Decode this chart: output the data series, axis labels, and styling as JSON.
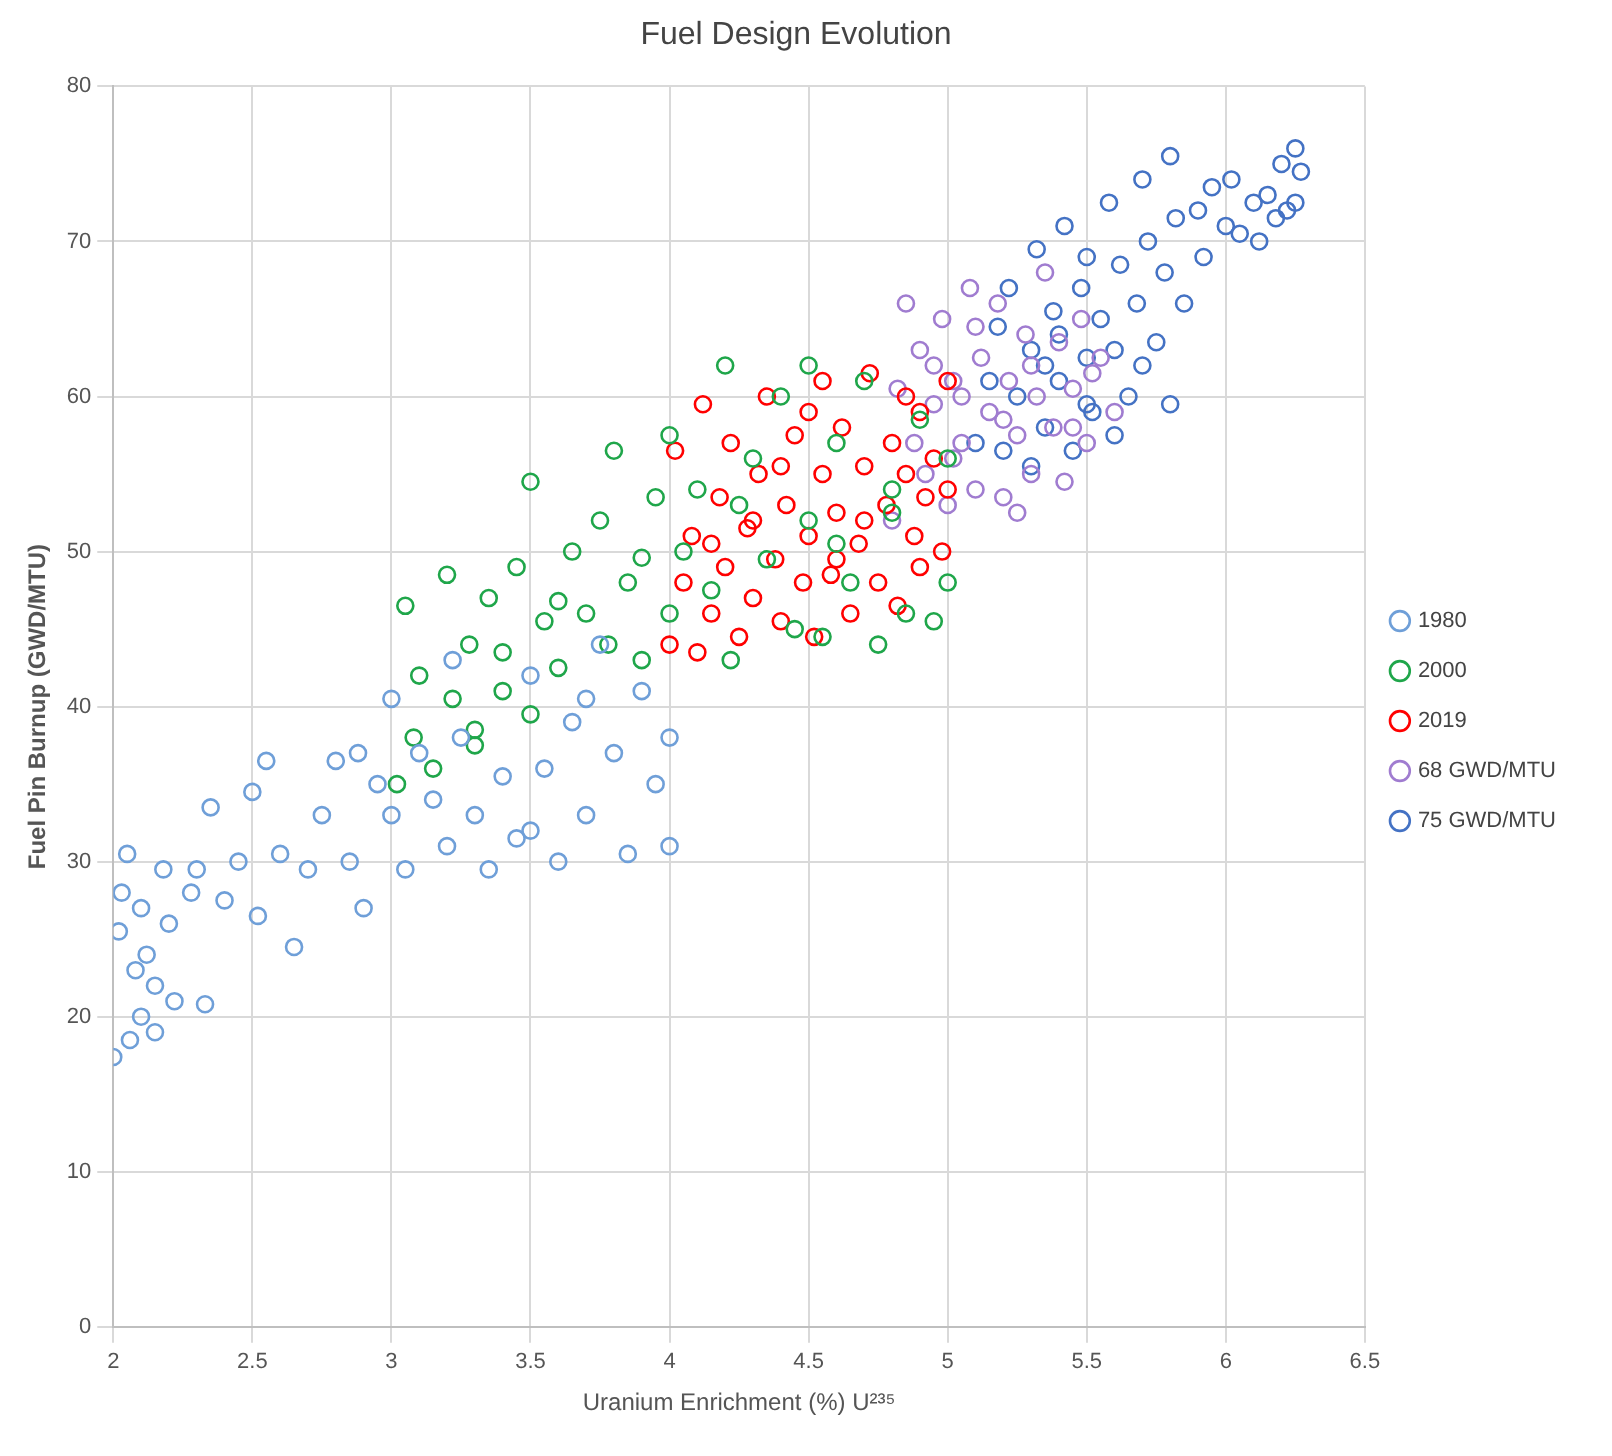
{
  "chart_data": {
    "type": "scatter",
    "title": "Fuel Design Evolution",
    "xlabel": "Uranium Enrichment (%) U²³⁵",
    "ylabel": "Fuel Pin Burnup (GWD/MTU)",
    "xlim": [
      2,
      6.5
    ],
    "xticks": [
      2,
      2.5,
      3,
      3.5,
      4,
      4.5,
      5,
      5.5,
      6,
      6.5
    ],
    "ylim": [
      0,
      80
    ],
    "yticks": [
      0,
      10,
      20,
      30,
      40,
      50,
      60,
      70,
      80
    ],
    "grid": true,
    "legend": "right",
    "marker": "circle",
    "series": [
      {
        "name": "1980",
        "color": "#6f9fd8",
        "x": [
          2.0,
          2.02,
          2.03,
          2.05,
          2.06,
          2.08,
          2.1,
          2.1,
          2.12,
          2.15,
          2.18,
          2.2,
          2.22,
          2.28,
          2.3,
          2.33,
          2.35,
          2.4,
          2.45,
          2.5,
          2.52,
          2.55,
          2.6,
          2.65,
          2.7,
          2.75,
          2.8,
          2.85,
          2.9,
          2.95,
          3.0,
          3.0,
          3.05,
          3.1,
          3.15,
          3.2,
          3.25,
          3.3,
          3.35,
          3.4,
          3.45,
          3.5,
          3.55,
          3.6,
          3.65,
          3.7,
          3.75,
          3.8,
          3.85,
          3.9,
          3.95,
          4.0,
          4.0,
          3.7,
          2.88,
          3.22,
          2.15,
          3.5
        ],
        "values": [
          17.4,
          25.5,
          28,
          30.5,
          18.5,
          23,
          27,
          20,
          24,
          22,
          29.5,
          26,
          21,
          28,
          29.5,
          20.8,
          33.5,
          27.5,
          30,
          34.5,
          26.5,
          36.5,
          30.5,
          24.5,
          29.5,
          33,
          36.5,
          30,
          27,
          35,
          40.5,
          33,
          29.5,
          37,
          34,
          31,
          38,
          33,
          29.5,
          35.5,
          31.5,
          42,
          36,
          30,
          39,
          33,
          44,
          37,
          30.5,
          41,
          35,
          31,
          38,
          40.5,
          37,
          43,
          19,
          32
        ]
      },
      {
        "name": "2000",
        "color": "#1fa64a",
        "x": [
          3.02,
          3.05,
          3.08,
          3.1,
          3.15,
          3.2,
          3.22,
          3.28,
          3.3,
          3.35,
          3.4,
          3.45,
          3.5,
          3.5,
          3.55,
          3.6,
          3.65,
          3.7,
          3.75,
          3.78,
          3.8,
          3.85,
          3.9,
          3.95,
          4.0,
          4.0,
          4.05,
          4.1,
          4.15,
          4.2,
          4.22,
          4.3,
          4.35,
          4.4,
          4.45,
          4.5,
          4.5,
          4.55,
          4.6,
          4.65,
          4.7,
          4.75,
          4.8,
          4.85,
          4.9,
          4.95,
          5.0,
          5.0,
          4.8,
          3.3,
          3.4,
          3.6,
          3.9,
          4.25,
          4.6
        ],
        "values": [
          35,
          46.5,
          38,
          42,
          36,
          48.5,
          40.5,
          44,
          38.5,
          47,
          41,
          49,
          54.5,
          39.5,
          45.5,
          42.5,
          50,
          46,
          52,
          44,
          56.5,
          48,
          43,
          53.5,
          57.5,
          46,
          50,
          54,
          47.5,
          62,
          43,
          56,
          49.5,
          60,
          45,
          62,
          52,
          44.5,
          57,
          48,
          61,
          44,
          54,
          46,
          58.5,
          45.5,
          48,
          56,
          52.5,
          37.5,
          43.5,
          46.8,
          49.6,
          53,
          50.5
        ]
      },
      {
        "name": "2019",
        "color": "#ff0000",
        "x": [
          4.0,
          4.02,
          4.05,
          4.08,
          4.1,
          4.12,
          4.15,
          4.18,
          4.2,
          4.22,
          4.25,
          4.28,
          4.3,
          4.32,
          4.35,
          4.38,
          4.4,
          4.42,
          4.45,
          4.48,
          4.5,
          4.5,
          4.52,
          4.55,
          4.58,
          4.6,
          4.62,
          4.65,
          4.68,
          4.7,
          4.72,
          4.75,
          4.78,
          4.8,
          4.82,
          4.85,
          4.88,
          4.9,
          4.92,
          4.95,
          4.98,
          5.0,
          5.0,
          4.3,
          4.4,
          4.6,
          4.7,
          4.85,
          4.15,
          4.55,
          4.9
        ],
        "values": [
          44,
          56.5,
          48,
          51,
          43.5,
          59.5,
          46,
          53.5,
          49,
          57,
          44.5,
          51.5,
          47,
          55,
          60,
          49.5,
          45.5,
          53,
          57.5,
          48,
          51,
          59,
          44.5,
          55,
          48.5,
          52.5,
          58,
          46,
          50.5,
          55.5,
          61.5,
          48,
          53,
          57,
          46.5,
          55,
          51,
          59,
          53.5,
          56,
          50,
          54,
          61,
          52,
          55.5,
          49.5,
          52,
          60,
          50.5,
          61,
          49
        ]
      },
      {
        "name": "68 GWD/MTU",
        "color": "#a07cd0",
        "x": [
          4.8,
          4.82,
          4.85,
          4.88,
          4.9,
          4.92,
          4.95,
          4.98,
          5.0,
          5.02,
          5.05,
          5.08,
          5.1,
          5.12,
          5.15,
          5.18,
          5.2,
          5.22,
          5.25,
          5.28,
          5.3,
          5.32,
          5.35,
          5.38,
          5.4,
          5.42,
          5.45,
          5.48,
          5.5,
          5.52,
          5.55,
          5.6,
          5.02,
          5.1,
          5.25,
          5.3,
          5.45,
          5.2,
          5.05,
          4.95
        ],
        "values": [
          52,
          60.5,
          66,
          57,
          63,
          55,
          59.5,
          65,
          53,
          61,
          57,
          67,
          54,
          62.5,
          59,
          66,
          53.5,
          61,
          57.5,
          64,
          55,
          60,
          68,
          58,
          63.5,
          54.5,
          60.5,
          65,
          57,
          61.5,
          62.5,
          59,
          56,
          64.5,
          52.5,
          62,
          58,
          58.5,
          60,
          62
        ]
      },
      {
        "name": "75 GWD/MTU",
        "color": "#4472c4",
        "x": [
          5.1,
          5.15,
          5.18,
          5.2,
          5.22,
          5.25,
          5.3,
          5.3,
          5.32,
          5.35,
          5.38,
          5.4,
          5.42,
          5.45,
          5.48,
          5.5,
          5.5,
          5.52,
          5.55,
          5.58,
          5.6,
          5.62,
          5.65,
          5.68,
          5.7,
          5.72,
          5.75,
          5.78,
          5.8,
          5.8,
          5.82,
          5.85,
          5.9,
          5.92,
          5.95,
          6.0,
          6.02,
          6.05,
          6.1,
          6.12,
          6.15,
          6.18,
          6.2,
          6.22,
          6.25,
          6.27,
          6.25,
          5.6,
          5.5,
          5.4,
          5.7,
          5.35
        ],
        "values": [
          57,
          61,
          64.5,
          56.5,
          67,
          60,
          55.5,
          63,
          69.5,
          58,
          65.5,
          61,
          71,
          56.5,
          67,
          62.5,
          69,
          59,
          65,
          72.5,
          63,
          68.5,
          60,
          66,
          74,
          70,
          63.5,
          68,
          75.5,
          59.5,
          71.5,
          66,
          72,
          69,
          73.5,
          71,
          74,
          70.5,
          72.5,
          70,
          73,
          71.5,
          75,
          72,
          76,
          74.5,
          72.5,
          57.5,
          59.5,
          64,
          62,
          62
        ]
      }
    ]
  }
}
